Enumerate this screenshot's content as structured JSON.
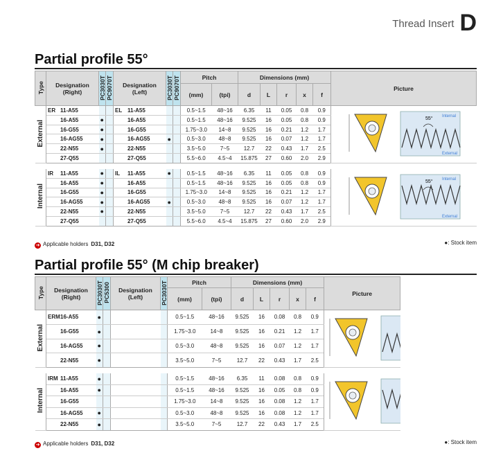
{
  "header": {
    "title": "Thread Insert",
    "letter": "D"
  },
  "common": {
    "type_label": "Type",
    "designation_right": [
      "Designation",
      "(Right)"
    ],
    "designation_left": [
      "Designation",
      "(Left)"
    ],
    "pitch_label": "Pitch",
    "mm_label": "(mm)",
    "tpi_label": "(tpi)",
    "dimensions_label": "Dimensions (mm)",
    "dims": [
      "d",
      "L",
      "r",
      "x",
      "f"
    ],
    "picture_label": "Picture",
    "stock_mark": "●",
    "holders_label": "Applicable holders",
    "holders": "D31, D32",
    "stock_item": "●: Stock item",
    "dia_angle": "55°",
    "dia_internal": "Internal",
    "dia_external": "External"
  },
  "section1": {
    "title": "Partial profile 55°",
    "grades_right": [
      "PC3030T",
      "PC9070T"
    ],
    "grades_left": [
      "PC3030T",
      "PC9070T"
    ],
    "groups": [
      {
        "type": "External",
        "fam_r": "ER",
        "fam_l": "EL",
        "rows": [
          {
            "r": "11-A55",
            "s1": "",
            "s2": "",
            "l": "11-A55",
            "s3": "",
            "s4": "",
            "mm": "0.5~1.5",
            "tpi": "48~16",
            "d": "6.35",
            "L": "11",
            "rr": "0.05",
            "x": "0.8",
            "f": "0.9"
          },
          {
            "r": "16-A55",
            "s1": "●",
            "s2": "",
            "l": "16-A55",
            "s3": "",
            "s4": "",
            "mm": "0.5~1.5",
            "tpi": "48~16",
            "d": "9.525",
            "L": "16",
            "rr": "0.05",
            "x": "0.8",
            "f": "0.9"
          },
          {
            "r": "16-G55",
            "s1": "●",
            "s2": "",
            "l": "16-G55",
            "s3": "",
            "s4": "",
            "mm": "1.75~3.0",
            "tpi": "14~8",
            "d": "9.525",
            "L": "16",
            "rr": "0.21",
            "x": "1.2",
            "f": "1.7"
          },
          {
            "r": "16-AG55",
            "s1": "●",
            "s2": "",
            "l": "16-AG55",
            "s3": "●",
            "s4": "",
            "mm": "0.5~3.0",
            "tpi": "48~8",
            "d": "9.525",
            "L": "16",
            "rr": "0.07",
            "x": "1.2",
            "f": "1.7"
          },
          {
            "r": "22-N55",
            "s1": "●",
            "s2": "",
            "l": "22-N55",
            "s3": "",
            "s4": "",
            "mm": "3.5~5.0",
            "tpi": "7~5",
            "d": "12.7",
            "L": "22",
            "rr": "0.43",
            "x": "1.7",
            "f": "2.5"
          },
          {
            "r": "27-Q55",
            "s1": "",
            "s2": "",
            "l": "27-Q55",
            "s3": "",
            "s4": "",
            "mm": "5.5~6.0",
            "tpi": "4.5~4",
            "d": "15.875",
            "L": "27",
            "rr": "0.60",
            "x": "2.0",
            "f": "2.9"
          }
        ]
      },
      {
        "type": "Internal",
        "fam_r": "IR",
        "fam_l": "IL",
        "rows": [
          {
            "r": "11-A55",
            "s1": "●",
            "s2": "",
            "l": "11-A55",
            "s3": "●",
            "s4": "",
            "mm": "0.5~1.5",
            "tpi": "48~16",
            "d": "6.35",
            "L": "11",
            "rr": "0.05",
            "x": "0.8",
            "f": "0.9"
          },
          {
            "r": "16-A55",
            "s1": "●",
            "s2": "",
            "l": "16-A55",
            "s3": "",
            "s4": "",
            "mm": "0.5~1.5",
            "tpi": "48~16",
            "d": "9.525",
            "L": "16",
            "rr": "0.05",
            "x": "0.8",
            "f": "0.9"
          },
          {
            "r": "16-G55",
            "s1": "●",
            "s2": "",
            "l": "16-G55",
            "s3": "",
            "s4": "",
            "mm": "1.75~3.0",
            "tpi": "14~8",
            "d": "9.525",
            "L": "16",
            "rr": "0.21",
            "x": "1.2",
            "f": "1.7"
          },
          {
            "r": "16-AG55",
            "s1": "●",
            "s2": "",
            "l": "16-AG55",
            "s3": "●",
            "s4": "",
            "mm": "0.5~3.0",
            "tpi": "48~8",
            "d": "9.525",
            "L": "16",
            "rr": "0.07",
            "x": "1.2",
            "f": "1.7"
          },
          {
            "r": "22-N55",
            "s1": "●",
            "s2": "",
            "l": "22-N55",
            "s3": "",
            "s4": "",
            "mm": "3.5~5.0",
            "tpi": "7~5",
            "d": "12.7",
            "L": "22",
            "rr": "0.43",
            "x": "1.7",
            "f": "2.5"
          },
          {
            "r": "27-Q55",
            "s1": "",
            "s2": "",
            "l": "27-Q55",
            "s3": "",
            "s4": "",
            "mm": "5.5~6.0",
            "tpi": "4.5~4",
            "d": "15.875",
            "L": "27",
            "rr": "0.60",
            "x": "2.0",
            "f": "2.9"
          }
        ]
      }
    ]
  },
  "section2": {
    "title": "Partial profile 55° (M chip breaker)",
    "grades_right": [
      "PC3030T",
      "PC5300"
    ],
    "grades_left": [
      "PC3030T"
    ],
    "groups": [
      {
        "type": "External",
        "fam_r": "ERM",
        "rows": [
          {
            "r": "16-A55",
            "s1": "●",
            "s2": "",
            "s3": "",
            "mm": "0.5~1.5",
            "tpi": "48~16",
            "d": "9.525",
            "L": "16",
            "rr": "0.08",
            "x": "0.8",
            "f": "0.9"
          },
          {
            "r": "16-G55",
            "s1": "●",
            "s2": "",
            "s3": "",
            "mm": "1.75~3.0",
            "tpi": "14~8",
            "d": "9.525",
            "L": "16",
            "rr": "0.21",
            "x": "1.2",
            "f": "1.7"
          },
          {
            "r": "16-AG55",
            "s1": "●",
            "s2": "",
            "s3": "",
            "mm": "0.5~3.0",
            "tpi": "48~8",
            "d": "9.525",
            "L": "16",
            "rr": "0.07",
            "x": "1.2",
            "f": "1.7"
          },
          {
            "r": "22-N55",
            "s1": "●",
            "s2": "",
            "s3": "",
            "mm": "3.5~5.0",
            "tpi": "7~5",
            "d": "12.7",
            "L": "22",
            "rr": "0.43",
            "x": "1.7",
            "f": "2.5"
          }
        ]
      },
      {
        "type": "Internal",
        "fam_r": "IRM",
        "rows": [
          {
            "r": "11-A55",
            "s1": "●",
            "s2": "",
            "s3": "",
            "mm": "0.5~1.5",
            "tpi": "48~16",
            "d": "6.35",
            "L": "11",
            "rr": "0.08",
            "x": "0.8",
            "f": "0.9"
          },
          {
            "r": "16-A55",
            "s1": "●",
            "s2": "",
            "s3": "",
            "mm": "0.5~1.5",
            "tpi": "48~16",
            "d": "9.525",
            "L": "16",
            "rr": "0.05",
            "x": "0.8",
            "f": "0.9"
          },
          {
            "r": "16-G55",
            "s1": "",
            "s2": "",
            "s3": "",
            "mm": "1.75~3.0",
            "tpi": "14~8",
            "d": "9.525",
            "L": "16",
            "rr": "0.08",
            "x": "1.2",
            "f": "1.7"
          },
          {
            "r": "16-AG55",
            "s1": "●",
            "s2": "",
            "s3": "",
            "mm": "0.5~3.0",
            "tpi": "48~8",
            "d": "9.525",
            "L": "16",
            "rr": "0.08",
            "x": "1.2",
            "f": "1.7"
          },
          {
            "r": "22-N55",
            "s1": "●",
            "s2": "",
            "s3": "",
            "mm": "3.5~5.0",
            "tpi": "7~5",
            "d": "12.7",
            "L": "22",
            "rr": "0.43",
            "x": "1.7",
            "f": "2.5"
          }
        ]
      }
    ]
  }
}
